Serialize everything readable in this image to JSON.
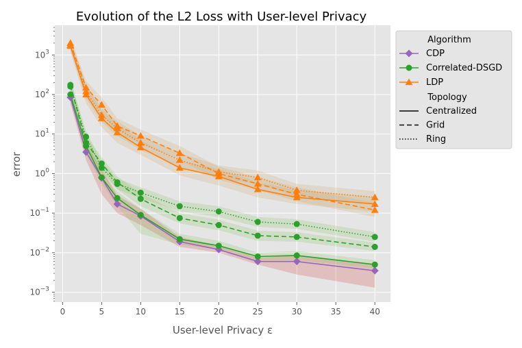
{
  "chart_data": {
    "type": "line",
    "title": "Evolution of the L2 Loss with User-level Privacy",
    "xlabel": "User-level Privacy ε",
    "ylabel": "error",
    "xlim": [
      -1,
      42
    ],
    "ylim_log10": [
      -3.25,
      3.75
    ],
    "yscale": "log",
    "grid": true,
    "x_ticks": [
      "0",
      "5",
      "10",
      "15",
      "20",
      "25",
      "30",
      "35",
      "40"
    ],
    "y_ticks": [
      {
        "base": "10",
        "exp": "−3"
      },
      {
        "base": "10",
        "exp": "−2"
      },
      {
        "base": "10",
        "exp": "−1"
      },
      {
        "base": "10",
        "exp": "0"
      },
      {
        "base": "10",
        "exp": "1"
      },
      {
        "base": "10",
        "exp": "2"
      },
      {
        "base": "10",
        "exp": "3"
      }
    ],
    "x": [
      1,
      3,
      5,
      7,
      10,
      15,
      20,
      25,
      30,
      40
    ],
    "legend": {
      "placement": "outside right",
      "algorithm_title": "Algorithm",
      "topology_title": "Topology",
      "algorithms": [
        "CDP",
        "Correlated-DSGD",
        "LDP"
      ],
      "topologies": [
        {
          "name": "Centralized",
          "dash": "solid"
        },
        {
          "name": "Grid",
          "dash": "dashed"
        },
        {
          "name": "Ring",
          "dash": "dotted"
        }
      ]
    },
    "colors": {
      "CDP": "#9467bd",
      "Correlated-DSGD": "#2ca02c",
      "LDP": "#ff7f0e",
      "band_CDP": "#d62728",
      "band_Correlated-DSGD": "#7fbf4a",
      "band_LDP": "#c8a060",
      "background": "#e5e5e5",
      "grid": "#ffffff"
    },
    "series": [
      {
        "algorithm": "CDP",
        "topology": "Centralized",
        "marker": "diamond",
        "values": [
          85,
          3.5,
          0.78,
          0.17,
          0.085,
          0.019,
          0.012,
          0.006,
          0.006,
          0.0035
        ],
        "lower": [
          60,
          2.2,
          0.3,
          0.1,
          0.05,
          0.014,
          0.01,
          0.005,
          0.0028,
          0.0013
        ],
        "upper": [
          120,
          5.5,
          1.3,
          0.28,
          0.13,
          0.025,
          0.015,
          0.0075,
          0.0085,
          0.005
        ]
      },
      {
        "algorithm": "Correlated-DSGD",
        "topology": "Centralized",
        "marker": "circle",
        "values": [
          100,
          5,
          0.8,
          0.24,
          0.09,
          0.022,
          0.015,
          0.008,
          0.0085,
          0.005
        ],
        "lower": [
          70,
          3.2,
          0.55,
          0.15,
          0.03,
          0.016,
          0.012,
          0.0065,
          0.0065,
          0.004
        ],
        "upper": [
          140,
          7.5,
          1.1,
          0.35,
          0.13,
          0.03,
          0.02,
          0.01,
          0.011,
          0.0065
        ]
      },
      {
        "algorithm": "Correlated-DSGD",
        "topology": "Grid",
        "marker": "circle",
        "values": [
          175,
          6,
          1.8,
          0.6,
          0.23,
          0.075,
          0.05,
          0.027,
          0.025,
          0.014
        ],
        "lower": [
          120,
          4,
          1.2,
          0.4,
          0.15,
          0.055,
          0.037,
          0.02,
          0.019,
          0.011
        ],
        "upper": [
          250,
          9,
          2.6,
          0.85,
          0.32,
          0.1,
          0.068,
          0.036,
          0.033,
          0.018
        ]
      },
      {
        "algorithm": "Correlated-DSGD",
        "topology": "Ring",
        "marker": "circle",
        "values": [
          160,
          8.5,
          1.4,
          0.55,
          0.33,
          0.15,
          0.11,
          0.06,
          0.053,
          0.025
        ],
        "lower": [
          110,
          6,
          1,
          0.4,
          0.24,
          0.11,
          0.08,
          0.045,
          0.04,
          0.019
        ],
        "upper": [
          230,
          12,
          2,
          0.75,
          0.45,
          0.2,
          0.15,
          0.08,
          0.07,
          0.033
        ]
      },
      {
        "algorithm": "LDP",
        "topology": "Centralized",
        "marker": "triangle",
        "values": [
          1700,
          100,
          25,
          11,
          4.6,
          1.4,
          0.85,
          0.4,
          0.25,
          0.17
        ],
        "lower": [
          1200,
          60,
          15,
          6,
          3,
          0.9,
          0.5,
          0.25,
          0.17,
          0.11
        ],
        "upper": [
          2400,
          160,
          40,
          18,
          7,
          2.1,
          1.3,
          0.6,
          0.38,
          0.26
        ]
      },
      {
        "algorithm": "LDP",
        "topology": "Grid",
        "marker": "triangle",
        "values": [
          2000,
          150,
          55,
          16,
          9,
          3.3,
          1,
          0.55,
          0.3,
          0.12
        ],
        "lower": [
          1400,
          100,
          35,
          10,
          6,
          2.2,
          0.7,
          0.38,
          0.2,
          0.08
        ],
        "upper": [
          2800,
          220,
          85,
          25,
          13,
          5,
          1.5,
          0.8,
          0.45,
          0.18
        ]
      },
      {
        "algorithm": "LDP",
        "topology": "Ring",
        "marker": "triangle",
        "values": [
          1800,
          120,
          30,
          14,
          6,
          2.2,
          1.1,
          0.8,
          0.38,
          0.25
        ],
        "lower": [
          1300,
          80,
          20,
          9,
          4,
          1.5,
          0.75,
          0.55,
          0.26,
          0.17
        ],
        "upper": [
          2500,
          180,
          45,
          21,
          9,
          3.3,
          1.6,
          1.2,
          0.55,
          0.36
        ]
      }
    ]
  }
}
